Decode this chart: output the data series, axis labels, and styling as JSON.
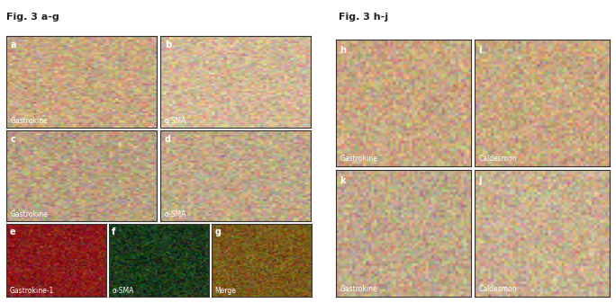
{
  "title_left": "Fig. 3 a-g",
  "title_right": "Fig. 3 h-j",
  "title_fontsize": 8,
  "title_fontweight": "bold",
  "background_color": "#ffffff",
  "panels": [
    {
      "label": "a",
      "caption": "Gastrokine",
      "row": 0,
      "col": 0,
      "group": "left"
    },
    {
      "label": "b",
      "caption": "α-SMA",
      "row": 0,
      "col": 1,
      "group": "left"
    },
    {
      "label": "c",
      "caption": "Gastrokine",
      "row": 1,
      "col": 0,
      "group": "left"
    },
    {
      "label": "d",
      "caption": "α-SMA",
      "row": 1,
      "col": 1,
      "group": "left"
    },
    {
      "label": "e",
      "caption": "Gastrokine-1",
      "row": 2,
      "col": 0,
      "group": "left"
    },
    {
      "label": "f",
      "caption": "α-SMA",
      "row": 2,
      "col": 1,
      "group": "left"
    },
    {
      "label": "g",
      "caption": "Merge",
      "row": 2,
      "col": 2,
      "group": "left"
    },
    {
      "label": "h",
      "caption": "Gastrokine",
      "row": 0,
      "col": 0,
      "group": "right"
    },
    {
      "label": "i",
      "caption": "Caldesmon",
      "row": 0,
      "col": 1,
      "group": "right"
    },
    {
      "label": "k",
      "caption": "Gastrokine",
      "row": 1,
      "col": 0,
      "group": "right"
    },
    {
      "label": "j",
      "caption": "Caldesmon",
      "row": 1,
      "col": 1,
      "group": "right"
    }
  ],
  "panel_colors": {
    "a": "#c8a882",
    "b": "#d4b896",
    "c": "#b8a080",
    "d": "#c0a888",
    "e": "#8b1a1a",
    "f": "#1a3a1a",
    "g": "#7a5a1a",
    "h": "#c8a882",
    "i": "#c8a882",
    "k": "#c0a888",
    "j": "#c8b090"
  },
  "caption_color": "#ffffff",
  "caption_fontsize": 5.5,
  "label_fontsize": 7,
  "label_color": "#ffffff",
  "border_color": "#333333",
  "border_linewidth": 0.8
}
